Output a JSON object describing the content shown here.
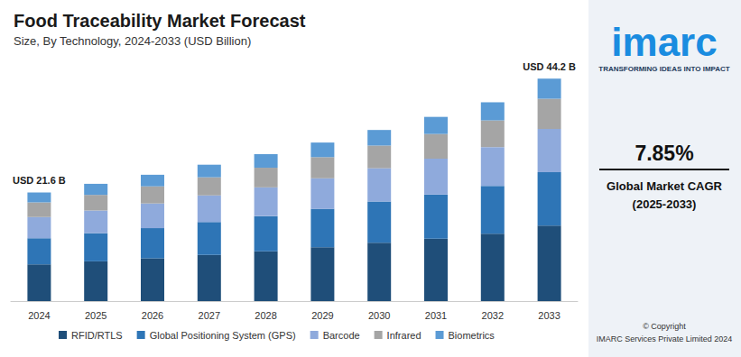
{
  "chart_data": {
    "type": "bar",
    "title": "Food Traceability Market Forecast",
    "subtitle": "Size, By Technology, 2024-2033 (USD Billion)",
    "categories": [
      "2024",
      "2025",
      "2026",
      "2027",
      "2028",
      "2029",
      "2030",
      "2031",
      "2032",
      "2033"
    ],
    "series": [
      {
        "name": "RFID/RTLS",
        "color": "#1f4e79",
        "values": [
          7.3,
          7.9,
          8.5,
          9.2,
          9.9,
          10.7,
          11.6,
          12.4,
          13.4,
          15.0
        ]
      },
      {
        "name": "Global Positioning System (GPS)",
        "color": "#2e75b6",
        "values": [
          5.2,
          5.6,
          6.0,
          6.5,
          7.0,
          7.6,
          8.2,
          8.8,
          9.5,
          10.6
        ]
      },
      {
        "name": "Barcode",
        "color": "#8faadc",
        "values": [
          4.2,
          4.5,
          4.9,
          5.3,
          5.7,
          6.1,
          6.6,
          7.1,
          7.7,
          8.6
        ]
      },
      {
        "name": "Infrared",
        "color": "#a5a5a5",
        "values": [
          2.9,
          3.1,
          3.4,
          3.6,
          3.9,
          4.2,
          4.5,
          4.9,
          5.3,
          6.0
        ]
      },
      {
        "name": "Biometrics",
        "color": "#5b9bd5",
        "values": [
          2.0,
          2.2,
          2.3,
          2.5,
          2.7,
          2.9,
          3.1,
          3.4,
          3.6,
          4.0
        ]
      }
    ],
    "stacked": true,
    "ylim": [
      0,
      48
    ],
    "tick_labels": "x",
    "grid": false,
    "legend": "bottom",
    "annotations": [
      {
        "label": "USD 21.6 B",
        "category": "2024",
        "value": 21.6
      },
      {
        "label": "USD 44.2 B",
        "category": "2033",
        "value": 44.2
      }
    ]
  },
  "side_panel": {
    "logo": "imarc",
    "tagline": "TRANSFORMING IDEAS INTO IMPACT",
    "cagr": "7.85%",
    "cagr_caption": "Global Market CAGR",
    "cagr_period": "(2025-2033)",
    "copyright": "© Copyright",
    "publisher": "IMARC Services Private Limited 2024"
  }
}
